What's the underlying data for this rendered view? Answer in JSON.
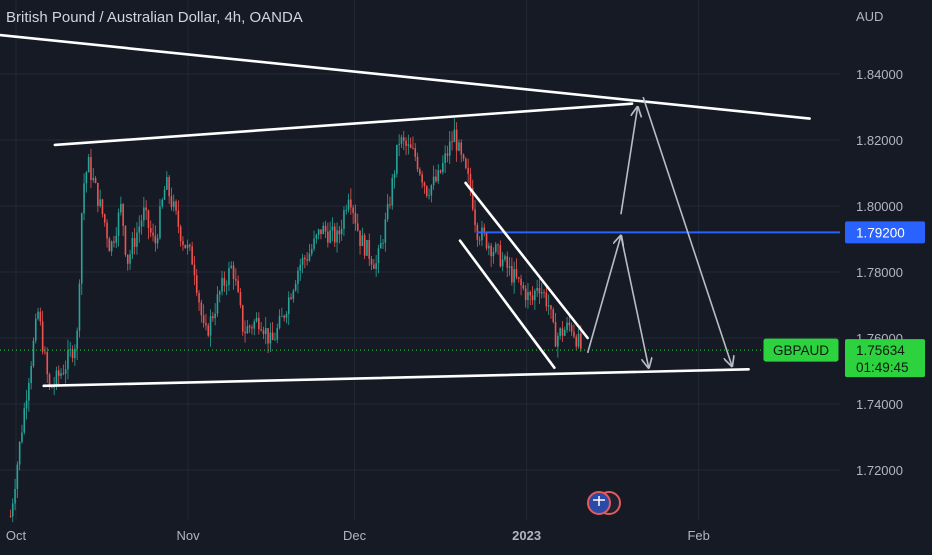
{
  "title": "British Pound / Australian Dollar, 4h, OANDA",
  "colors": {
    "background": "#161a25",
    "grid": "#232834",
    "up": "#26a69a",
    "down": "#ef5350",
    "trendline": "#ffffff",
    "projection": "#b8bcc4",
    "level_line": "#2962ff",
    "price_label_bg": "#2dd33f",
    "text": "#b2b5be"
  },
  "chart_data": {
    "type": "candlestick",
    "symbol": "GBPAUD",
    "interval": "4h",
    "broker": "OANDA",
    "y_unit": "AUD",
    "ylim": [
      1.704,
      1.848
    ],
    "y_ticks": [
      "1.72000",
      "1.74000",
      "1.76000",
      "1.78000",
      "1.80000",
      "1.82000",
      "1.84000"
    ],
    "x_ticks": [
      "Oct",
      "Nov",
      "Dec",
      "2023",
      "Feb"
    ],
    "last_price": {
      "symbol": "GBPAUD",
      "value": "1.75634",
      "countdown": "01:49:45"
    },
    "level_line": {
      "value": "1.79200",
      "from": "2022-12-23",
      "price": 1.792
    },
    "price_path": [
      [
        "2022-09-30",
        1.706
      ],
      [
        "2022-10-03",
        1.745
      ],
      [
        "2022-10-05",
        1.768
      ],
      [
        "2022-10-07",
        1.744
      ],
      [
        "2022-10-10",
        1.752
      ],
      [
        "2022-10-12",
        1.76
      ],
      [
        "2022-10-13",
        1.805
      ],
      [
        "2022-10-14",
        1.813
      ],
      [
        "2022-10-17",
        1.795
      ],
      [
        "2022-10-18",
        1.787
      ],
      [
        "2022-10-20",
        1.8
      ],
      [
        "2022-10-21",
        1.783
      ],
      [
        "2022-10-24",
        1.798
      ],
      [
        "2022-10-26",
        1.788
      ],
      [
        "2022-10-28",
        1.807
      ],
      [
        "2022-10-31",
        1.79
      ],
      [
        "2022-11-02",
        1.783
      ],
      [
        "2022-11-04",
        1.76
      ],
      [
        "2022-11-07",
        1.775
      ],
      [
        "2022-11-09",
        1.782
      ],
      [
        "2022-11-11",
        1.762
      ],
      [
        "2022-11-14",
        1.766
      ],
      [
        "2022-11-16",
        1.758
      ],
      [
        "2022-11-18",
        1.766
      ],
      [
        "2022-11-21",
        1.782
      ],
      [
        "2022-11-23",
        1.786
      ],
      [
        "2022-11-25",
        1.793
      ],
      [
        "2022-11-28",
        1.79
      ],
      [
        "2022-11-30",
        1.805
      ],
      [
        "2022-12-02",
        1.79
      ],
      [
        "2022-12-05",
        1.782
      ],
      [
        "2022-12-07",
        1.798
      ],
      [
        "2022-12-09",
        1.82
      ],
      [
        "2022-12-12",
        1.815
      ],
      [
        "2022-12-14",
        1.805
      ],
      [
        "2022-12-16",
        1.808
      ],
      [
        "2022-12-19",
        1.822
      ],
      [
        "2022-12-20",
        1.815
      ],
      [
        "2022-12-22",
        1.805
      ],
      [
        "2022-12-23",
        1.793
      ],
      [
        "2022-12-27",
        1.785
      ],
      [
        "2022-12-29",
        1.78
      ],
      [
        "2023-01-02",
        1.771
      ],
      [
        "2023-01-03",
        1.777
      ],
      [
        "2023-01-05",
        1.77
      ],
      [
        "2023-01-06",
        1.76
      ],
      [
        "2023-01-09",
        1.764
      ],
      [
        "2023-01-11",
        1.756
      ]
    ]
  },
  "drawings": {
    "trendlines": [
      {
        "name": "upper-wedge-line",
        "p1": [
          "2022-09-27",
          1.852
        ],
        "p2": [
          "2023-02-21",
          1.8265
        ]
      },
      {
        "name": "upper-channel-line",
        "p1": [
          "2022-10-08",
          1.8185
        ],
        "p2": [
          "2023-01-20",
          1.831
        ]
      },
      {
        "name": "lower-support-line",
        "p1": [
          "2022-10-06",
          1.7455
        ],
        "p2": [
          "2023-02-10",
          1.7505
        ]
      },
      {
        "name": "falling-channel-top",
        "p1": [
          "2022-12-21",
          1.807
        ],
        "p2": [
          "2023-01-12",
          1.76
        ]
      },
      {
        "name": "falling-channel-bottom",
        "p1": [
          "2022-12-20",
          1.7895
        ],
        "p2": [
          "2023-01-06",
          1.751
        ]
      }
    ],
    "projection_paths": [
      [
        [
          "2023-01-12",
          1.7555
        ],
        [
          "2023-01-18",
          1.791
        ]
      ],
      [
        [
          "2023-01-18",
          1.791
        ],
        [
          "2023-01-23",
          1.751
        ]
      ],
      [
        [
          "2023-01-18",
          1.7975
        ],
        [
          "2023-01-21",
          1.83
        ]
      ],
      [
        [
          "2023-01-22",
          1.833
        ],
        [
          "2023-02-07",
          1.7515
        ]
      ]
    ]
  }
}
